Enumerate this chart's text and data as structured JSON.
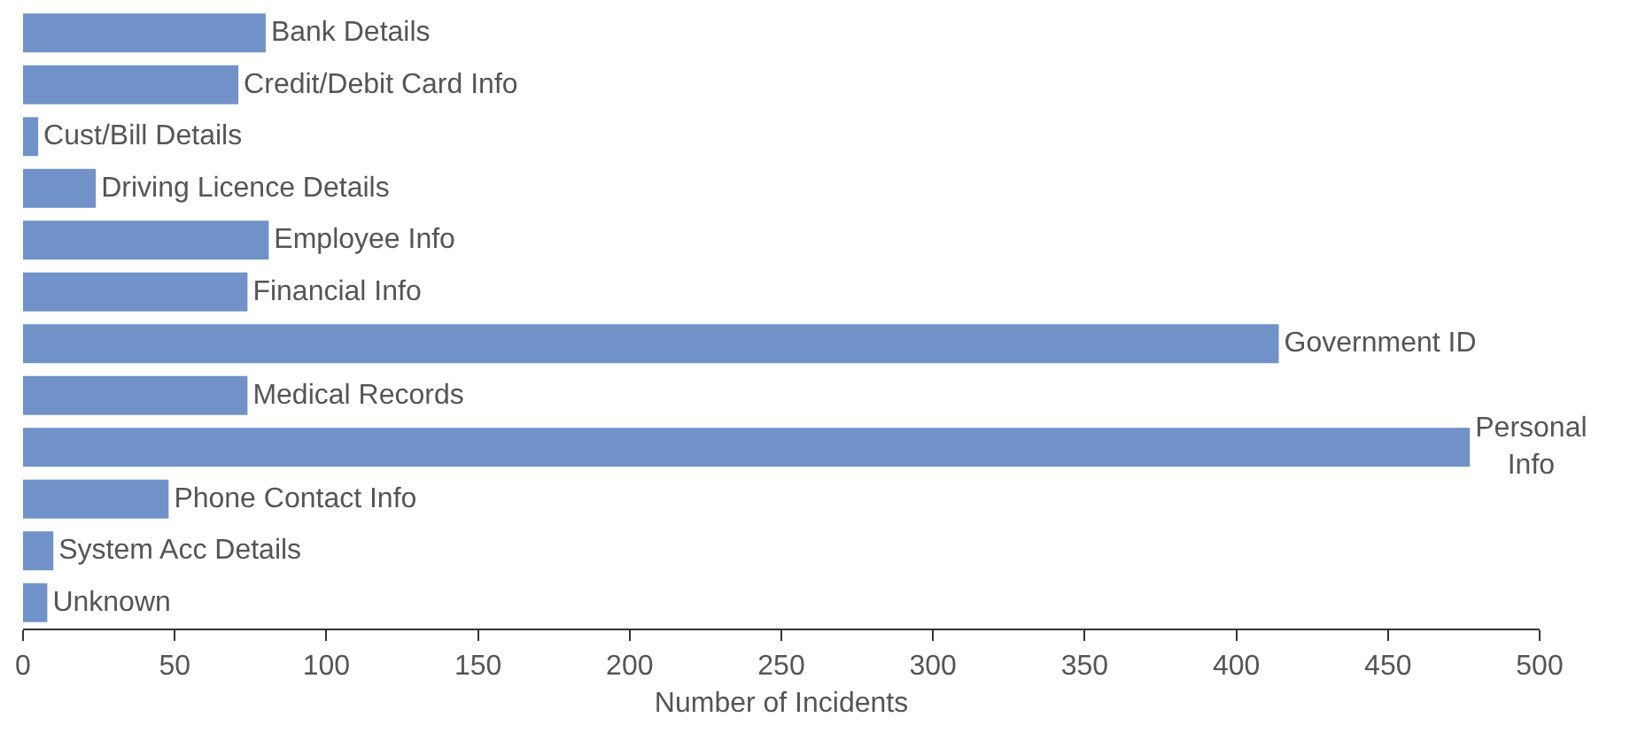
{
  "chart_data": {
    "type": "bar",
    "orientation": "horizontal",
    "xlabel": "Number of Incidents",
    "categories": [
      "Bank Details",
      "Credit/Debit Card Info",
      "Cust/Bill Details",
      "Driving Licence Details",
      "Employee Info",
      "Financial Info",
      "Government ID",
      "Medical Records",
      "Personal Info",
      "Phone Contact Info",
      "System Acc Details",
      "Unknown"
    ],
    "values": [
      80,
      71,
      5,
      24,
      81,
      74,
      414,
      74,
      477,
      48,
      10,
      8
    ],
    "color": "#7192c8",
    "xlim": [
      0,
      500
    ],
    "xticks": [
      0,
      50,
      100,
      150,
      200,
      250,
      300,
      350,
      400,
      450,
      500
    ],
    "tick_labels": "x"
  }
}
